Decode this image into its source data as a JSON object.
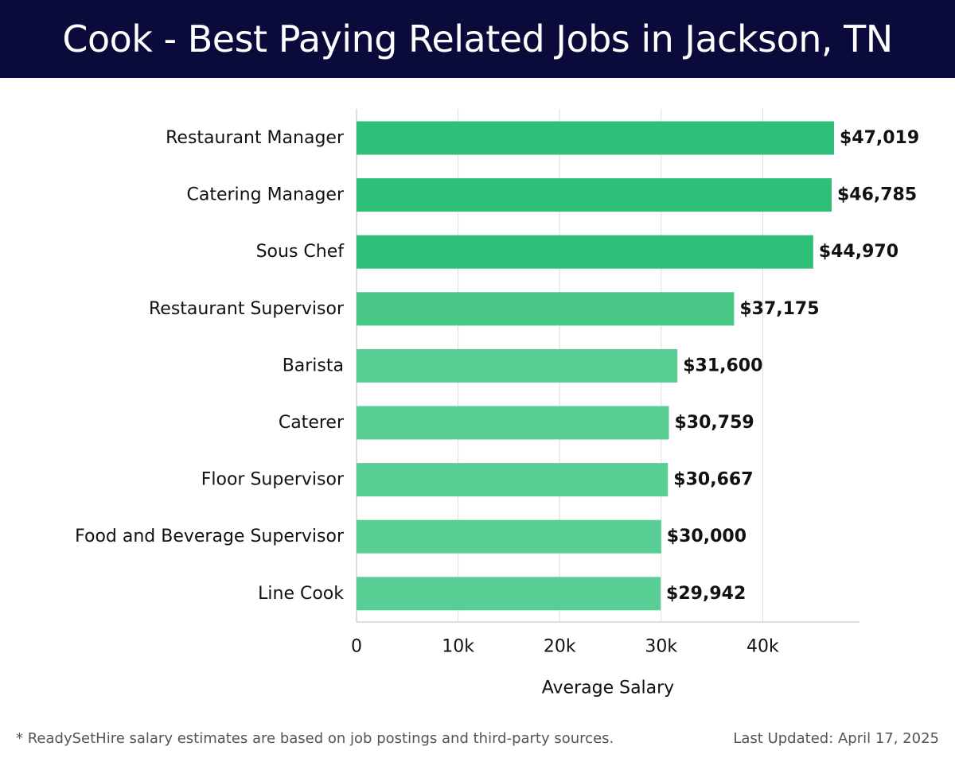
{
  "page": {
    "title": "Cook - Best Paying Related Jobs in Jackson, TN",
    "footnote": "* ReadySetHire salary estimates are based on job postings and third-party sources.",
    "last_updated": "Last Updated: April 17, 2025"
  },
  "chart_data": {
    "type": "bar",
    "orientation": "horizontal",
    "title": "",
    "xlabel": "Average Salary",
    "ylabel": "",
    "xlim": [
      0,
      49500
    ],
    "x_ticks": [
      0,
      10000,
      20000,
      30000,
      40000
    ],
    "x_tick_labels": [
      "0",
      "10k",
      "20k",
      "30k",
      "40k"
    ],
    "grid": "vertical",
    "categories": [
      "Restaurant Manager",
      "Catering Manager",
      "Sous Chef",
      "Restaurant Supervisor",
      "Barista",
      "Caterer",
      "Floor Supervisor",
      "Food and Beverage Supervisor",
      "Line Cook"
    ],
    "values": [
      47019,
      46785,
      44970,
      37175,
      31600,
      30759,
      30667,
      30000,
      29942
    ],
    "value_labels": [
      "$47,019",
      "$46,785",
      "$44,970",
      "$37,175",
      "$31,600",
      "$30,759",
      "$30,667",
      "$30,000",
      "$29,942"
    ],
    "colors": {
      "dark_green": "#2ebf78",
      "mid_green": "#47c685",
      "light_green": "#58cd94",
      "grid": "#dddddd",
      "axis_line": "#bbbbbb",
      "header_bg": "#0b0b3b"
    }
  }
}
